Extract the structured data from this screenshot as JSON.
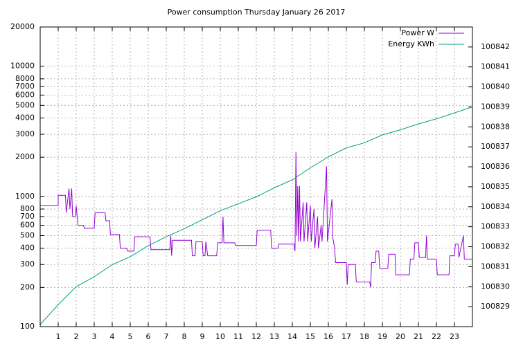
{
  "chart_data": {
    "type": "line",
    "title": "Power consumption Thursday January 26 2017",
    "xlim": [
      0,
      24
    ],
    "xticks": [
      1,
      2,
      3,
      4,
      5,
      6,
      7,
      8,
      9,
      10,
      11,
      12,
      13,
      14,
      15,
      16,
      17,
      18,
      19,
      20,
      21,
      22,
      23
    ],
    "ylim": [
      100,
      20000
    ],
    "log_y": true,
    "yticks": [
      100,
      200,
      300,
      400,
      500,
      600,
      700,
      800,
      1000,
      2000,
      3000,
      4000,
      5000,
      6000,
      7000,
      8000,
      10000,
      20000
    ],
    "y2lim": [
      100828,
      100843
    ],
    "y2ticks": [
      100829,
      100830,
      100831,
      100832,
      100833,
      100834,
      100835,
      100836,
      100837,
      100838,
      100839,
      100840,
      100841,
      100842
    ],
    "grid": true,
    "legend": "top-right",
    "series": [
      {
        "name": "Power W",
        "color": "#9400d3",
        "x": [
          0,
          1,
          1.0,
          1.4,
          1.45,
          1.6,
          1.65,
          1.75,
          1.8,
          1.95,
          2.0,
          2.1,
          2.4,
          2.45,
          3.0,
          3.05,
          3.6,
          3.65,
          3.85,
          3.9,
          4.4,
          4.45,
          4.8,
          4.85,
          5.2,
          5.25,
          6.1,
          6.15,
          7.2,
          7.25,
          7.3,
          7.35,
          8.4,
          8.45,
          8.6,
          8.65,
          9.0,
          9.05,
          9.15,
          9.2,
          9.3,
          9.8,
          9.85,
          10.1,
          10.15,
          10.2,
          10.8,
          10.85,
          12.0,
          12.05,
          12.8,
          12.85,
          13.2,
          13.25,
          14.1,
          14.15,
          14.2,
          14.25,
          14.3,
          14.35,
          14.4,
          14.45,
          14.6,
          14.65,
          14.8,
          14.85,
          15.0,
          15.05,
          15.2,
          15.25,
          15.4,
          15.45,
          15.6,
          15.65,
          15.9,
          15.95,
          16.2,
          16.25,
          16.35,
          16.4,
          17.0,
          17.05,
          17.1,
          17.5,
          17.55,
          18.3,
          18.35,
          18.4,
          18.6,
          18.65,
          18.8,
          18.85,
          19.3,
          19.35,
          19.7,
          19.75,
          20.5,
          20.55,
          20.75,
          20.8,
          21.0,
          21.05,
          21.4,
          21.45,
          21.5,
          22.0,
          22.05,
          22.7,
          22.75,
          23.0,
          23.05,
          23.2,
          23.25,
          23.5,
          23.55,
          24
        ],
        "values": [
          850,
          850,
          1020,
          1020,
          750,
          1150,
          800,
          1150,
          700,
          700,
          850,
          600,
          600,
          570,
          570,
          750,
          750,
          650,
          650,
          510,
          510,
          400,
          400,
          380,
          380,
          490,
          490,
          390,
          390,
          500,
          350,
          460,
          460,
          350,
          350,
          450,
          450,
          350,
          350,
          450,
          350,
          350,
          440,
          440,
          700,
          440,
          440,
          420,
          420,
          550,
          550,
          400,
          400,
          430,
          430,
          380,
          2200,
          500,
          1200,
          450,
          1200,
          450,
          900,
          450,
          900,
          450,
          850,
          450,
          800,
          400,
          700,
          400,
          600,
          450,
          1700,
          450,
          950,
          480,
          400,
          310,
          310,
          210,
          300,
          300,
          220,
          220,
          200,
          310,
          310,
          380,
          380,
          280,
          280,
          360,
          360,
          250,
          250,
          330,
          330,
          440,
          440,
          340,
          340,
          500,
          330,
          330,
          250,
          250,
          350,
          350,
          430,
          430,
          340,
          500,
          330,
          330
        ]
      },
      {
        "name": "Energy KWh",
        "color": "#009e73",
        "axis": "y2",
        "x": [
          0,
          0.5,
          1,
          2,
          3,
          4,
          5,
          6,
          7,
          8,
          9,
          10,
          11,
          12,
          13,
          14,
          15,
          16,
          17,
          18,
          19,
          20,
          21,
          22,
          23,
          24
        ],
        "values": [
          100828.1,
          100828.6,
          100829.1,
          100830.0,
          100830.5,
          100831.1,
          100831.5,
          100832.05,
          100832.5,
          100832.9,
          100833.35,
          100833.8,
          100834.15,
          100834.5,
          100834.95,
          100835.35,
          100835.95,
          100836.5,
          100836.95,
          100837.2,
          100837.6,
          100837.85,
          100838.15,
          100838.4,
          100838.7,
          100839.0
        ]
      }
    ]
  }
}
